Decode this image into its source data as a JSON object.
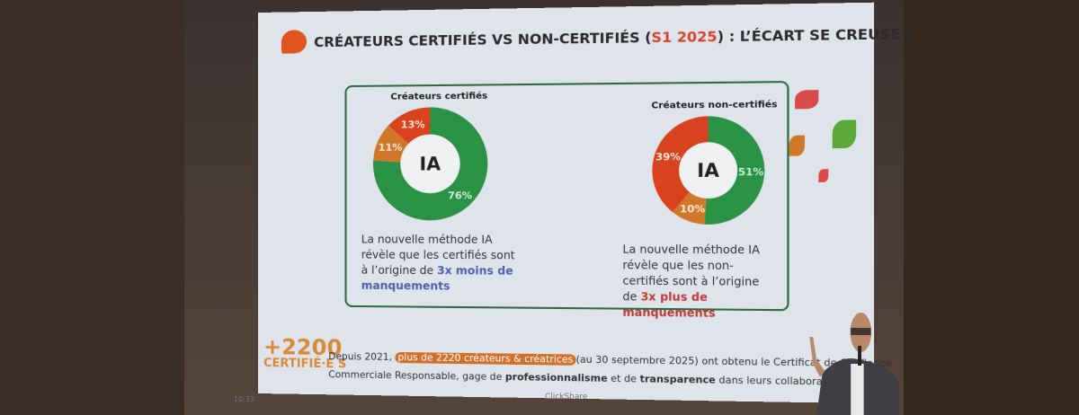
{
  "slide": {
    "title_pre": "CRÉATEURS CERTIFIÉS VS NON-CERTIFIÉS (",
    "title_hl": "S1 2025",
    "title_post": ") : L’ÉCART SE CREUSE !",
    "colors": {
      "green": "#2a9244",
      "orange": "#d0782a",
      "red": "#d9421e",
      "accent": "#d8442c"
    },
    "certified": {
      "label": "Créateurs certifiés",
      "center": "IA",
      "desc_1": "La nouvelle méthode IA révèle que les certifiés sont à l’origine de ",
      "desc_hl": "3x moins de manquements"
    },
    "non_certified": {
      "label": "Créateurs non-certifiés",
      "center": "IA",
      "desc_1": "La nouvelle méthode IA révèle que les non-certifiés sont à l’origine de ",
      "desc_hl": "3x plus de manquements"
    },
    "badge_number": "+2200",
    "badge_text": "CERTIFIÉ·E S",
    "footer_1": "Depuis 2021, ",
    "footer_pill": "plus de 2220 créateurs & créatrices",
    "footer_2": "(au 30 septembre 2025) ont obtenu le Certificat de Confiance",
    "footer_3": "Commerciale Responsable, gage de ",
    "footer_b1": "professionnalisme",
    "footer_4": " et de ",
    "footer_b2": "transparence",
    "footer_5": " dans leurs collaborations."
  },
  "screen_clock": "10:33",
  "screen_brand": "ClickShare",
  "chart_data": [
    {
      "type": "pie",
      "title": "Créateurs certifiés",
      "center_label": "IA",
      "values": [
        76,
        11,
        13
      ],
      "labels": [
        "76%",
        "11%",
        "13%"
      ],
      "colors": [
        "#2a9244",
        "#d0782a",
        "#d9421e"
      ]
    },
    {
      "type": "pie",
      "title": "Créateurs non-certifiés",
      "center_label": "IA",
      "values": [
        51,
        10,
        39
      ],
      "labels": [
        "51%",
        "10%",
        "39%"
      ],
      "colors": [
        "#2a9244",
        "#d0782a",
        "#d9421e"
      ]
    }
  ]
}
